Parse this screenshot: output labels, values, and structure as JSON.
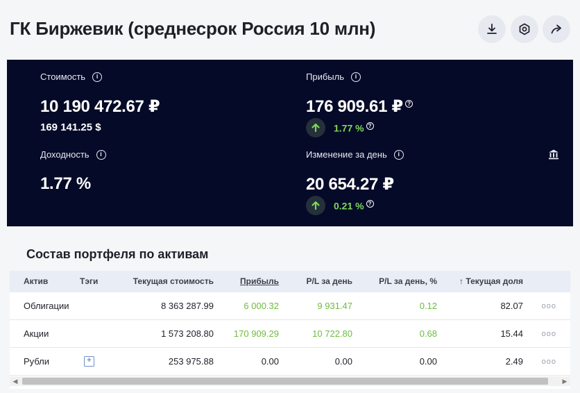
{
  "header": {
    "title": "ГК Биржевик (среднесрок Россия 10 млн)",
    "buttons": [
      {
        "icon": "download-icon"
      },
      {
        "icon": "settings-hexagon-icon"
      },
      {
        "icon": "share-icon"
      }
    ]
  },
  "summary": {
    "cost": {
      "label": "Стоимость",
      "value": "10 190 472.67 ₽",
      "sub_value": "169 141.25 $"
    },
    "profit": {
      "label": "Прибыль",
      "value": "176 909.61 ₽",
      "change": "1.77 %"
    },
    "yield": {
      "label": "Доходность",
      "value": "1.77 %"
    },
    "day_change": {
      "label": "Изменение за день",
      "value": "20 654.27 ₽",
      "change": "0.21 %"
    },
    "info_symbol": "i",
    "help_symbol": "?",
    "accent_green": "#7ed957",
    "panel_bg": "#050a28"
  },
  "section": {
    "title": "Состав портфеля по активам"
  },
  "table": {
    "columns": [
      "Актив",
      "Тэги",
      "Текущая стоимость",
      "Прибыль",
      "P/L за день",
      "P/L за день, %",
      "Текущая доля"
    ],
    "sort_indicator": "↑",
    "rows": [
      {
        "asset": "Облигации",
        "value": "8 363 287.99",
        "profit": "6 000.32",
        "pl_day": "9 931.47",
        "pl_day_pct": "0.12",
        "share": "82.07",
        "has_tag": false
      },
      {
        "asset": "Акции",
        "value": "1 573 208.80",
        "profit": "170 909.29",
        "pl_day": "10 722.80",
        "pl_day_pct": "0.68",
        "share": "15.44",
        "has_tag": false
      },
      {
        "asset": "Рубли",
        "value": "253 975.88",
        "profit": "0.00",
        "pl_day": "0.00",
        "pl_day_pct": "0.00",
        "share": "2.49",
        "has_tag": true
      }
    ],
    "row_menu": "ooo",
    "add_tag": "+"
  }
}
